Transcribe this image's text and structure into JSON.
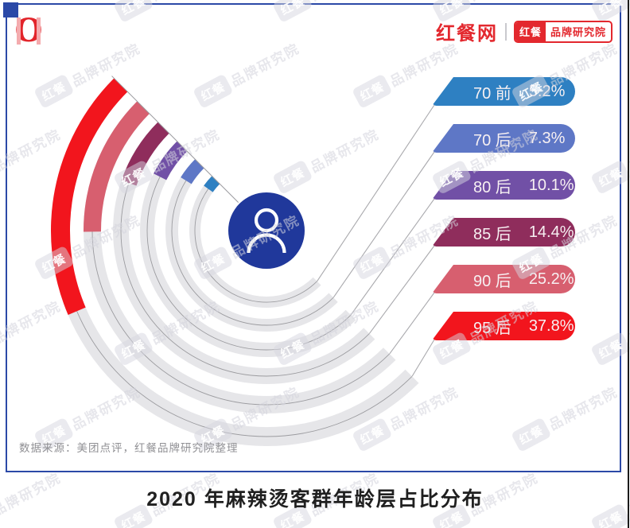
{
  "header": {
    "logo_o": "O",
    "site_name": "红餐网",
    "badge_left": "红餐",
    "badge_right": "品牌研究院"
  },
  "chart_data": {
    "type": "radial_bar",
    "title": "2020 年麻辣烫客群年龄层占比分布",
    "categories": [
      "70 前",
      "70 后",
      "80 后",
      "85 后",
      "90 后",
      "95 后"
    ],
    "values": [
      5.2,
      7.3,
      10.1,
      14.4,
      25.2,
      37.8
    ],
    "unit": "%",
    "colors": [
      "#2E80C2",
      "#5E77C6",
      "#7150A6",
      "#8F2D5C",
      "#D75F6F",
      "#F2151D"
    ],
    "track_color": "#E6E6E9",
    "centerline_color": "#9B9B9F",
    "leader_line_color": "#A9A9AD",
    "center_circle_color": "#20389B",
    "center_icon": "person-icon",
    "angle_start_compass_deg": 315,
    "degrees_per_percent": 1.8,
    "ring_order": "innermost ring is 70 前, outermost ring is 95 后",
    "legend_position": "right",
    "grid": false
  },
  "source_note": "数据来源：美团点评，红餐品牌研究院整理",
  "watermark": {
    "box_text": "红餐",
    "text": "品牌研究院"
  },
  "frame_color": "#2B49A7"
}
